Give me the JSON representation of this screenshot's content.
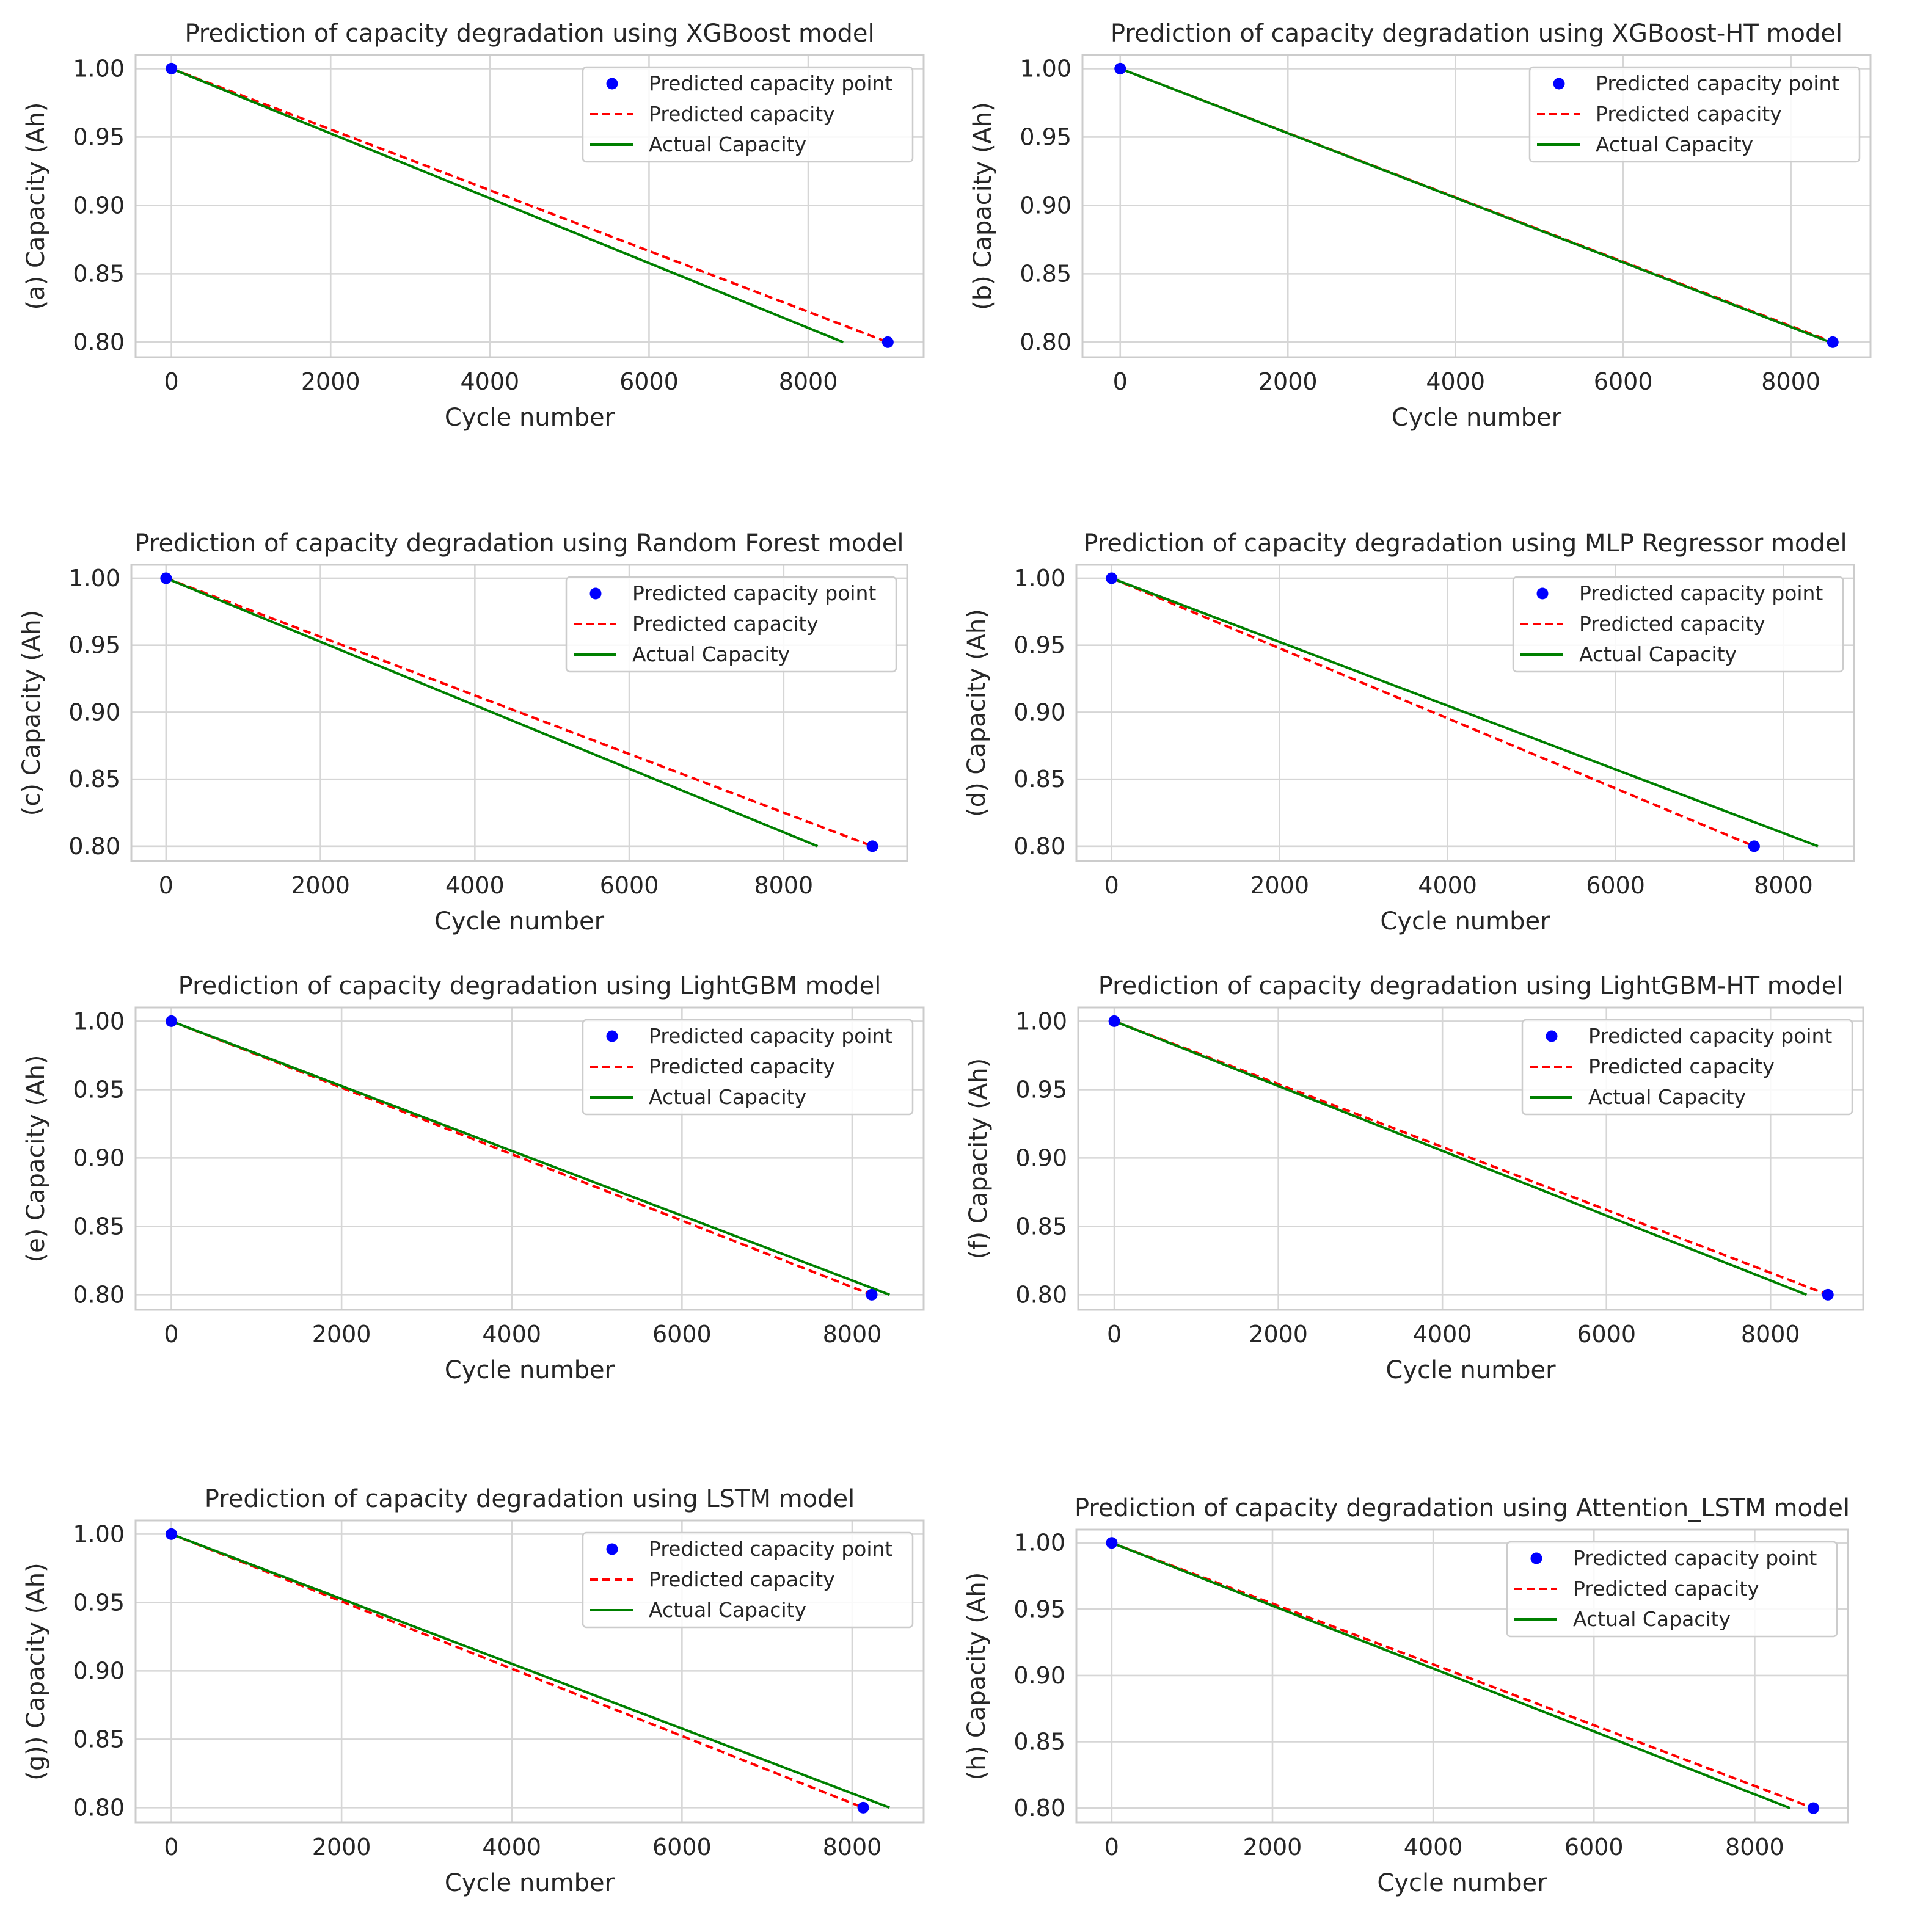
{
  "chart_data": [
    {
      "type": "line",
      "panel": "a",
      "title": "Prediction of capacity degradation using XGBoost model",
      "xlabel": "Cycle number",
      "ylabel": "(a) Capacity (Ah)",
      "xlim": [
        -450,
        9450
      ],
      "ylim": [
        0.789,
        1.01
      ],
      "xticks": [
        0,
        2000,
        4000,
        6000,
        8000
      ],
      "xtick_labels": [
        "0",
        "2000",
        "4000",
        "6000",
        "8000"
      ],
      "yticks": [
        0.8,
        0.85,
        0.9,
        0.95,
        1.0
      ],
      "ytick_labels": [
        "0.80",
        "0.85",
        "0.90",
        "0.95",
        "1.00"
      ],
      "grid": true,
      "legend_position": "top-right",
      "series": [
        {
          "name": "Predicted capacity point",
          "type": "scatter",
          "color": "#0000ff",
          "x": [
            0,
            9000
          ],
          "y": [
            1.0,
            0.8
          ]
        },
        {
          "name": "Predicted capacity",
          "type": "line",
          "style": "dashed",
          "color": "#ff0000",
          "x": [
            0,
            9000
          ],
          "y": [
            1.0,
            0.8
          ]
        },
        {
          "name": "Actual Capacity",
          "type": "line",
          "style": "solid",
          "color": "#008000",
          "x": [
            0,
            8440
          ],
          "y": [
            1.0,
            0.8
          ]
        }
      ]
    },
    {
      "type": "line",
      "panel": "b",
      "title": "Prediction of capacity degradation using XGBoost-HT model",
      "xlabel": "Cycle number",
      "ylabel": "(b) Capacity (Ah)",
      "xlim": [
        -450,
        8950
      ],
      "ylim": [
        0.789,
        1.01
      ],
      "xticks": [
        0,
        2000,
        4000,
        6000,
        8000
      ],
      "xtick_labels": [
        "0",
        "2000",
        "4000",
        "6000",
        "8000"
      ],
      "yticks": [
        0.8,
        0.85,
        0.9,
        0.95,
        1.0
      ],
      "ytick_labels": [
        "0.80",
        "0.85",
        "0.90",
        "0.95",
        "1.00"
      ],
      "grid": true,
      "legend_position": "top-right",
      "series": [
        {
          "name": "Predicted capacity point",
          "type": "scatter",
          "color": "#0000ff",
          "x": [
            0,
            8500
          ],
          "y": [
            1.0,
            0.8
          ]
        },
        {
          "name": "Predicted capacity",
          "type": "line",
          "style": "dashed",
          "color": "#ff0000",
          "x": [
            0,
            8500
          ],
          "y": [
            1.0,
            0.8
          ]
        },
        {
          "name": "Actual Capacity",
          "type": "line",
          "style": "solid",
          "color": "#008000",
          "x": [
            0,
            8470
          ],
          "y": [
            1.0,
            0.8
          ]
        }
      ]
    },
    {
      "type": "line",
      "panel": "c",
      "title": "Prediction of capacity degradation using Random Forest model",
      "xlabel": "Cycle number",
      "ylabel": "(c) Capacity (Ah)",
      "xlim": [
        -450,
        9600
      ],
      "ylim": [
        0.789,
        1.01
      ],
      "xticks": [
        0,
        2000,
        4000,
        6000,
        8000
      ],
      "xtick_labels": [
        "0",
        "2000",
        "4000",
        "6000",
        "8000"
      ],
      "yticks": [
        0.8,
        0.85,
        0.9,
        0.95,
        1.0
      ],
      "ytick_labels": [
        "0.80",
        "0.85",
        "0.90",
        "0.95",
        "1.00"
      ],
      "grid": true,
      "legend_position": "top-right",
      "series": [
        {
          "name": "Predicted capacity point",
          "type": "scatter",
          "color": "#0000ff",
          "x": [
            0,
            9150
          ],
          "y": [
            1.0,
            0.8
          ]
        },
        {
          "name": "Predicted capacity",
          "type": "line",
          "style": "dashed",
          "color": "#ff0000",
          "x": [
            0,
            9150
          ],
          "y": [
            1.0,
            0.8
          ]
        },
        {
          "name": "Actual Capacity",
          "type": "line",
          "style": "solid",
          "color": "#008000",
          "x": [
            0,
            8440
          ],
          "y": [
            1.0,
            0.8
          ]
        }
      ]
    },
    {
      "type": "line",
      "panel": "d",
      "title": "Prediction of capacity degradation using MLP Regressor model",
      "xlabel": "Cycle number",
      "ylabel": "(d) Capacity (Ah)",
      "xlim": [
        -420,
        8840
      ],
      "ylim": [
        0.789,
        1.01
      ],
      "xticks": [
        0,
        2000,
        4000,
        6000,
        8000
      ],
      "xtick_labels": [
        "0",
        "2000",
        "4000",
        "6000",
        "8000"
      ],
      "yticks": [
        0.8,
        0.85,
        0.9,
        0.95,
        1.0
      ],
      "ytick_labels": [
        "0.80",
        "0.85",
        "0.90",
        "0.95",
        "1.00"
      ],
      "grid": true,
      "legend_position": "top-right",
      "series": [
        {
          "name": "Predicted capacity point",
          "type": "scatter",
          "color": "#0000ff",
          "x": [
            0,
            7650
          ],
          "y": [
            1.0,
            0.8
          ]
        },
        {
          "name": "Predicted capacity",
          "type": "line",
          "style": "dashed",
          "color": "#ff0000",
          "x": [
            0,
            7650
          ],
          "y": [
            1.0,
            0.8
          ]
        },
        {
          "name": "Actual Capacity",
          "type": "line",
          "style": "solid",
          "color": "#008000",
          "x": [
            0,
            8410
          ],
          "y": [
            1.0,
            0.8
          ]
        }
      ]
    },
    {
      "type": "line",
      "panel": "e",
      "title": "Prediction of capacity degradation using LightGBM model",
      "xlabel": "Cycle number",
      "ylabel": "(e) Capacity (Ah)",
      "xlim": [
        -420,
        8840
      ],
      "ylim": [
        0.789,
        1.01
      ],
      "xticks": [
        0,
        2000,
        4000,
        6000,
        8000
      ],
      "xtick_labels": [
        "0",
        "2000",
        "4000",
        "6000",
        "8000"
      ],
      "yticks": [
        0.8,
        0.85,
        0.9,
        0.95,
        1.0
      ],
      "ytick_labels": [
        "0.80",
        "0.85",
        "0.90",
        "0.95",
        "1.00"
      ],
      "grid": true,
      "legend_position": "top-right",
      "series": [
        {
          "name": "Predicted capacity point",
          "type": "scatter",
          "color": "#0000ff",
          "x": [
            0,
            8230
          ],
          "y": [
            1.0,
            0.8
          ]
        },
        {
          "name": "Predicted capacity",
          "type": "line",
          "style": "dashed",
          "color": "#ff0000",
          "x": [
            0,
            8230
          ],
          "y": [
            1.0,
            0.8
          ]
        },
        {
          "name": "Actual Capacity",
          "type": "line",
          "style": "solid",
          "color": "#008000",
          "x": [
            0,
            8440
          ],
          "y": [
            1.0,
            0.8
          ]
        }
      ]
    },
    {
      "type": "line",
      "panel": "f",
      "title": "Prediction of capacity degradation using LightGBM-HT model",
      "xlabel": "Cycle number",
      "ylabel": "(f) Capacity (Ah)",
      "xlim": [
        -440,
        9130
      ],
      "ylim": [
        0.789,
        1.01
      ],
      "xticks": [
        0,
        2000,
        4000,
        6000,
        8000
      ],
      "xtick_labels": [
        "0",
        "2000",
        "4000",
        "6000",
        "8000"
      ],
      "yticks": [
        0.8,
        0.85,
        0.9,
        0.95,
        1.0
      ],
      "ytick_labels": [
        "0.80",
        "0.85",
        "0.90",
        "0.95",
        "1.00"
      ],
      "grid": true,
      "legend_position": "top-right",
      "series": [
        {
          "name": "Predicted capacity point",
          "type": "scatter",
          "color": "#0000ff",
          "x": [
            0,
            8700
          ],
          "y": [
            1.0,
            0.8
          ]
        },
        {
          "name": "Predicted capacity",
          "type": "line",
          "style": "dashed",
          "color": "#ff0000",
          "x": [
            0,
            8700
          ],
          "y": [
            1.0,
            0.8
          ]
        },
        {
          "name": "Actual Capacity",
          "type": "line",
          "style": "solid",
          "color": "#008000",
          "x": [
            0,
            8440
          ],
          "y": [
            1.0,
            0.8
          ]
        }
      ]
    },
    {
      "type": "line",
      "panel": "g",
      "title": "Prediction of capacity degradation using LSTM model",
      "xlabel": "Cycle number",
      "ylabel": "(g)) Capacity (Ah)",
      "xlim": [
        -420,
        8840
      ],
      "ylim": [
        0.789,
        1.01
      ],
      "xticks": [
        0,
        2000,
        4000,
        6000,
        8000
      ],
      "xtick_labels": [
        "0",
        "2000",
        "4000",
        "6000",
        "8000"
      ],
      "yticks": [
        0.8,
        0.85,
        0.9,
        0.95,
        1.0
      ],
      "ytick_labels": [
        "0.80",
        "0.85",
        "0.90",
        "0.95",
        "1.00"
      ],
      "grid": true,
      "legend_position": "top-right",
      "series": [
        {
          "name": "Predicted capacity point",
          "type": "scatter",
          "color": "#0000ff",
          "x": [
            0,
            8130
          ],
          "y": [
            1.0,
            0.8
          ]
        },
        {
          "name": "Predicted capacity",
          "type": "line",
          "style": "dashed",
          "color": "#ff0000",
          "x": [
            0,
            8130
          ],
          "y": [
            1.0,
            0.8
          ]
        },
        {
          "name": "Actual Capacity",
          "type": "line",
          "style": "solid",
          "color": "#008000",
          "x": [
            0,
            8440
          ],
          "y": [
            1.0,
            0.8
          ]
        }
      ]
    },
    {
      "type": "line",
      "panel": "h",
      "title": "Prediction of capacity degradation using Attention_LSTM model",
      "xlabel": "Cycle number",
      "ylabel": "(h) Capacity (Ah)",
      "xlim": [
        -440,
        9160
      ],
      "ylim": [
        0.789,
        1.01
      ],
      "xticks": [
        0,
        2000,
        4000,
        6000,
        8000
      ],
      "xtick_labels": [
        "0",
        "2000",
        "4000",
        "6000",
        "8000"
      ],
      "yticks": [
        0.8,
        0.85,
        0.9,
        0.95,
        1.0
      ],
      "ytick_labels": [
        "0.80",
        "0.85",
        "0.90",
        "0.95",
        "1.00"
      ],
      "grid": true,
      "legend_position": "top-right",
      "series": [
        {
          "name": "Predicted capacity point",
          "type": "scatter",
          "color": "#0000ff",
          "x": [
            0,
            8730
          ],
          "y": [
            1.0,
            0.8
          ]
        },
        {
          "name": "Predicted capacity",
          "type": "line",
          "style": "dashed",
          "color": "#ff0000",
          "x": [
            0,
            8730
          ],
          "y": [
            1.0,
            0.8
          ]
        },
        {
          "name": "Actual Capacity",
          "type": "line",
          "style": "solid",
          "color": "#008000",
          "x": [
            0,
            8440
          ],
          "y": [
            1.0,
            0.8
          ]
        }
      ]
    }
  ]
}
